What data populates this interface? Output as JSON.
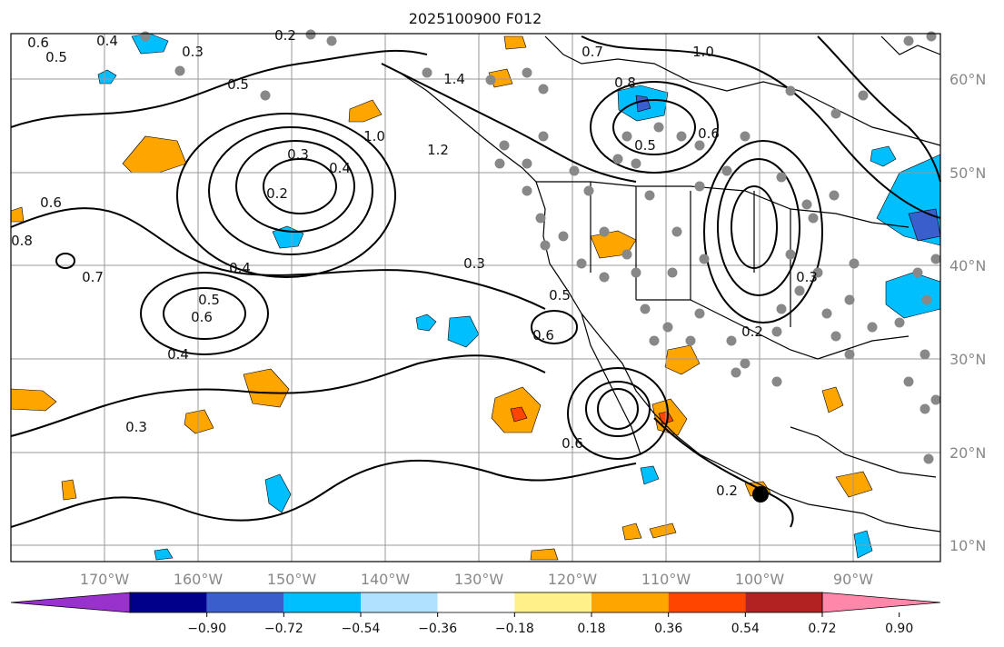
{
  "map": {
    "title": "2025100900 F012",
    "lon_labels": [
      "170°W",
      "160°W",
      "150°W",
      "140°W",
      "130°W",
      "120°W",
      "110°W",
      "100°W",
      "90°W"
    ],
    "lat_labels": [
      "60°N",
      "50°N",
      "40°N",
      "30°N",
      "20°N",
      "10°N"
    ],
    "contour_labels": [
      "0.6",
      "0.5",
      "0.3",
      "0.2",
      "0.4",
      "0.5",
      "0.3",
      "0.4",
      "0.2",
      "0.6",
      "0.8",
      "0.7",
      "0.4",
      "0.5",
      "0.6",
      "0.4",
      "0.3",
      "0.3",
      "0.5",
      "0.6",
      "1.0",
      "1.2",
      "1.4",
      "0.8",
      "0.5",
      "0.6",
      "1.0",
      "0.7",
      "0.2",
      "0.6",
      "0.3",
      "0.2"
    ]
  },
  "colorbar": {
    "colors": [
      "#9932cc",
      "#00008b",
      "#3a5fcd",
      "#00bfff",
      "#b0e2ff",
      "#ffffff",
      "#fff08a",
      "#ffa500",
      "#ff4500",
      "#b22222",
      "#ff88aa"
    ],
    "labels": [
      "−0.90",
      "−0.72",
      "−0.54",
      "−0.36",
      "−0.18",
      "0.18",
      "0.36",
      "0.54",
      "0.72",
      "0.90"
    ]
  }
}
